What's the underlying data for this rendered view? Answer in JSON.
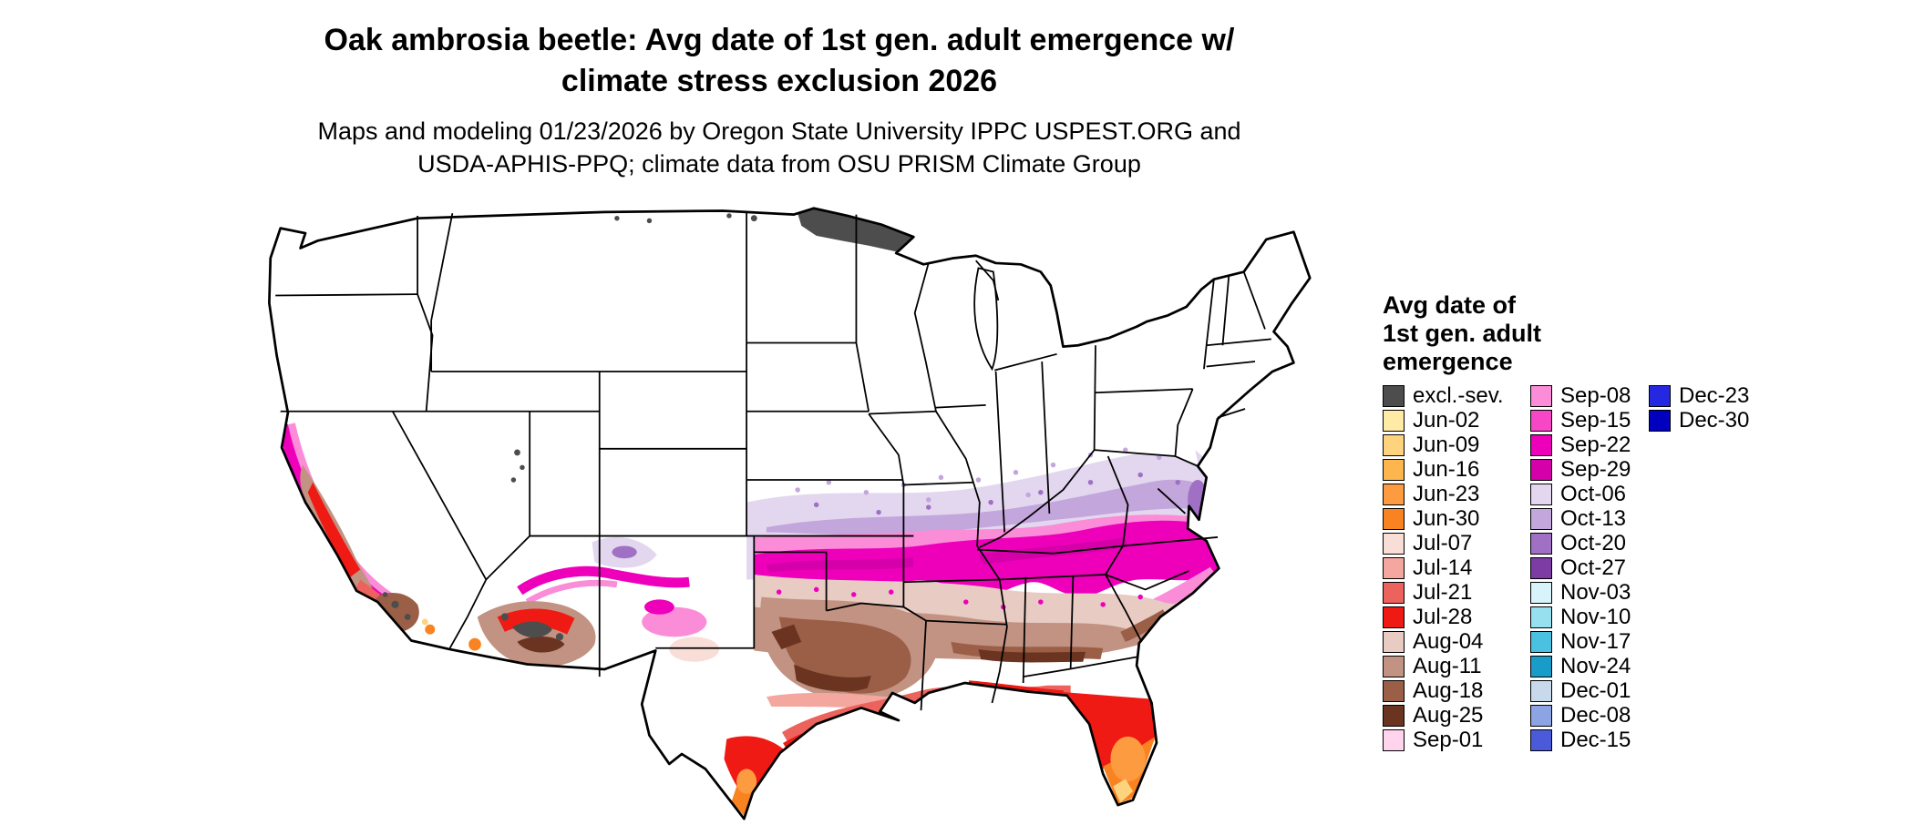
{
  "title": {
    "line1": "Oak ambrosia beetle: Avg date of 1st gen. adult emergence w/",
    "line2": "climate stress exclusion 2026"
  },
  "subtitle": {
    "line1": "Maps and modeling 01/23/2026 by Oregon State University IPPC USPEST.ORG and",
    "line2": "USDA-APHIS-PPQ; climate data from OSU PRISM Climate Group"
  },
  "legend": {
    "title_lines": [
      "Avg date of",
      "1st gen. adult",
      "emergence"
    ],
    "columns": [
      [
        {
          "label": "excl.-sev.",
          "color": "#4D4D4D"
        },
        {
          "label": "Jun-02",
          "color": "#FFEBA6"
        },
        {
          "label": "Jun-09",
          "color": "#FED37E"
        },
        {
          "label": "Jun-16",
          "color": "#FDB54E"
        },
        {
          "label": "Jun-23",
          "color": "#FD9B41"
        },
        {
          "label": "Jun-30",
          "color": "#F98321"
        },
        {
          "label": "Jul-07",
          "color": "#F9DED7"
        },
        {
          "label": "Jul-14",
          "color": "#F3A79E"
        },
        {
          "label": "Jul-21",
          "color": "#EC625C"
        },
        {
          "label": "Jul-28",
          "color": "#EF1A14"
        },
        {
          "label": "Aug-04",
          "color": "#E8CBC3"
        },
        {
          "label": "Aug-11",
          "color": "#C29282"
        },
        {
          "label": "Aug-18",
          "color": "#9A5F46"
        },
        {
          "label": "Aug-25",
          "color": "#6B3420"
        },
        {
          "label": "Sep-01",
          "color": "#FFD4EC"
        }
      ],
      [
        {
          "label": "Sep-08",
          "color": "#FB8CD8"
        },
        {
          "label": "Sep-15",
          "color": "#F747C7"
        },
        {
          "label": "Sep-22",
          "color": "#EE00BB"
        },
        {
          "label": "Sep-29",
          "color": "#D600AA"
        },
        {
          "label": "Oct-06",
          "color": "#E2D7EF"
        },
        {
          "label": "Oct-13",
          "color": "#C3A6DC"
        },
        {
          "label": "Oct-20",
          "color": "#A070C4"
        },
        {
          "label": "Oct-27",
          "color": "#7C3CA4"
        },
        {
          "label": "Nov-03",
          "color": "#D9F3FA"
        },
        {
          "label": "Nov-10",
          "color": "#96E0F0"
        },
        {
          "label": "Nov-17",
          "color": "#4AC1E0"
        },
        {
          "label": "Nov-24",
          "color": "#1A9CC8"
        },
        {
          "label": "Dec-01",
          "color": "#C9D9EC"
        },
        {
          "label": "Dec-08",
          "color": "#8CA3E4"
        },
        {
          "label": "Dec-15",
          "color": "#4A5AD8"
        }
      ],
      [
        {
          "label": "Dec-23",
          "color": "#2428E0"
        },
        {
          "label": "Dec-30",
          "color": "#0000BE"
        }
      ]
    ]
  }
}
